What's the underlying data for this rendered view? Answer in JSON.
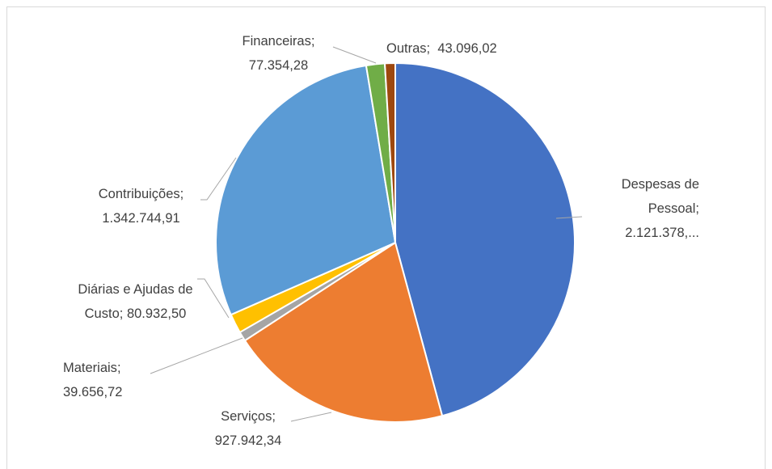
{
  "chart_data": {
    "type": "pie",
    "label_separator": ";",
    "categories": [
      "Despesas de Pessoal",
      "Serviços",
      "Materiais",
      "Diárias e Ajudas de Custo",
      "Contribuições",
      "Financeiras",
      "Outras"
    ],
    "values": [
      2121378,
      927942.34,
      39656.72,
      80932.5,
      1342744.91,
      77354.28,
      43096.02
    ],
    "value_labels": [
      "2.121.378,...",
      "927.942,34",
      "39.656,72",
      "80.932,50",
      "1.342.744,91",
      "77.354,28",
      "43.096,02"
    ],
    "colors": [
      "#4472c4",
      "#ed7d31",
      "#a5a5a5",
      "#ffc000",
      "#5b9bd5",
      "#70ad47",
      "#9e480e"
    ]
  }
}
